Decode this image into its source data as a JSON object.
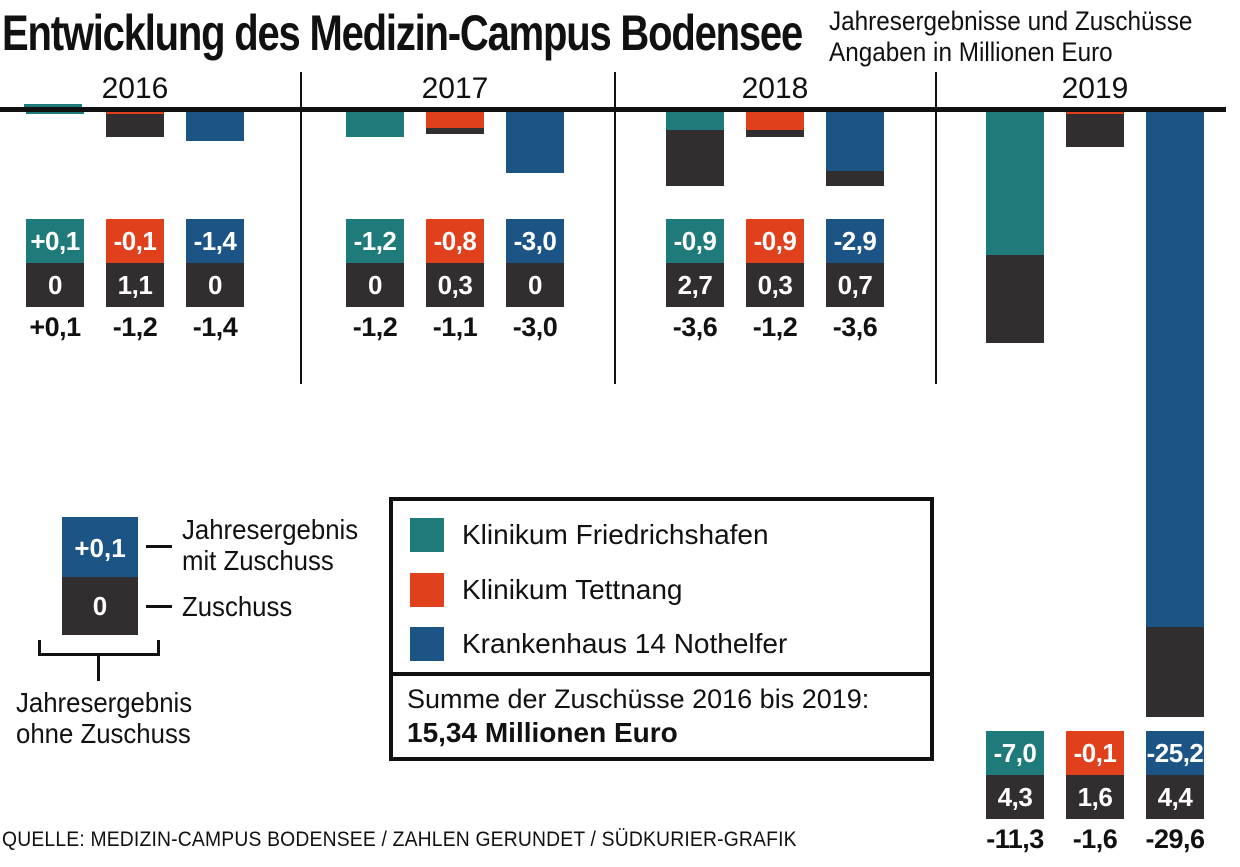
{
  "title": "Entwicklung des Medizin-Campus Bodensee",
  "subtitle_line1": "Jahresergebnisse und Zuschüsse",
  "subtitle_line2": "Angaben in Millionen Euro",
  "source": "QUELLE: MEDIZIN-CAMPUS BODENSEE / ZAHLEN GERUNDET / SÜDKURIER-GRAFIK",
  "colors": {
    "friedrichshafen": "#1f7a7a",
    "tettnang": "#e0401b",
    "nothelfer": "#1c5485",
    "zuschuss": "#322d2f",
    "text": "#111111"
  },
  "legend": {
    "items": [
      {
        "label": "Klinikum Friedrichshafen",
        "color": "#1f7a7a"
      },
      {
        "label": "Klinikum Tettnang",
        "color": "#e0401b"
      },
      {
        "label": "Krankenhaus 14 Nothelfer",
        "color": "#1c5485"
      }
    ],
    "summe_label": "Summe der Zuschüsse 2016 bis 2019:",
    "summe_value": "15,34 Millionen Euro"
  },
  "key": {
    "example_result": "+0,1",
    "example_subsidy": "0",
    "result_label_line1": "Jahresergebnis",
    "result_label_line2": "mit Zuschuss",
    "subsidy_label": "Zuschuss",
    "bottom_label_line1": "Jahresergebnis",
    "bottom_label_line2": "ohne Zuschuss"
  },
  "chart_data": {
    "type": "bar",
    "stacked": true,
    "direction": "downward",
    "unit": "Millionen Euro",
    "years": [
      "2016",
      "2017",
      "2018",
      "2019"
    ],
    "series": [
      {
        "name": "Klinikum Friedrichshafen",
        "key": "friedrichshafen",
        "jahresergebnis_mit_zuschuss": [
          0.1,
          -1.2,
          -0.9,
          -7.0
        ],
        "zuschuss": [
          0,
          0,
          2.7,
          4.3
        ],
        "jahresergebnis_ohne_zuschuss": [
          0.1,
          -1.2,
          -3.6,
          -11.3
        ],
        "labels_mit": [
          "+0,1",
          "-1,2",
          "-0,9",
          "-7,0"
        ],
        "labels_zuschuss": [
          "0",
          "0",
          "2,7",
          "4,3"
        ],
        "labels_ohne": [
          "+0,1",
          "-1,2",
          "-3,6",
          "-11,3"
        ]
      },
      {
        "name": "Klinikum Tettnang",
        "key": "tettnang",
        "jahresergebnis_mit_zuschuss": [
          -0.1,
          -0.8,
          -0.9,
          -0.1
        ],
        "zuschuss": [
          1.1,
          0.3,
          0.3,
          1.6
        ],
        "jahresergebnis_ohne_zuschuss": [
          -1.2,
          -1.1,
          -1.2,
          -1.6
        ],
        "labels_mit": [
          "-0,1",
          "-0,8",
          "-0,9",
          "-0,1"
        ],
        "labels_zuschuss": [
          "1,1",
          "0,3",
          "0,3",
          "1,6"
        ],
        "labels_ohne": [
          "-1,2",
          "-1,1",
          "-1,2",
          "-1,6"
        ]
      },
      {
        "name": "Krankenhaus 14 Nothelfer",
        "key": "nothelfer",
        "jahresergebnis_mit_zuschuss": [
          -1.4,
          -3.0,
          -2.9,
          -25.2
        ],
        "zuschuss": [
          0,
          0,
          0.7,
          4.4
        ],
        "jahresergebnis_ohne_zuschuss": [
          -1.4,
          -3.0,
          -3.6,
          -29.6
        ],
        "labels_mit": [
          "-1,4",
          "-3,0",
          "-2,9",
          "-25,2"
        ],
        "labels_zuschuss": [
          "0",
          "0",
          "0,7",
          "4,4"
        ],
        "labels_ohne": [
          "-1,4",
          "-3,0",
          "-3,6",
          "-29,6"
        ]
      }
    ]
  }
}
